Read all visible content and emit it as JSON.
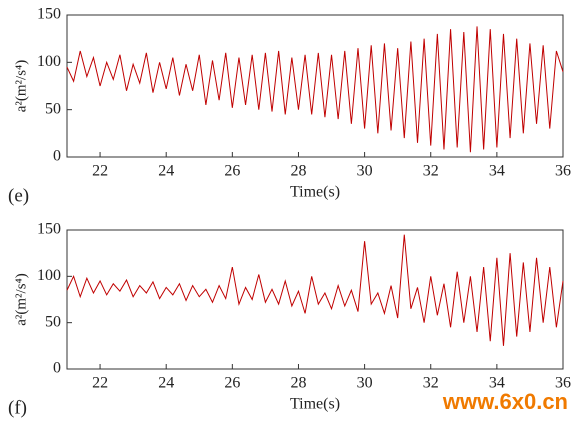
{
  "chart_data": [
    {
      "type": "line",
      "panel_label": "(e)",
      "x_label": "Time(s)",
      "y_label": "a²(m²/s⁴)",
      "xlim": [
        21,
        36
      ],
      "xticks": [
        22,
        24,
        26,
        28,
        30,
        32,
        34,
        36
      ],
      "ylim": [
        0,
        150
      ],
      "yticks": [
        0,
        50,
        100,
        150
      ],
      "color": "#c00000",
      "x": [
        21.0,
        21.2,
        21.4,
        21.6,
        21.8,
        22.0,
        22.2,
        22.4,
        22.6,
        22.8,
        23.0,
        23.2,
        23.4,
        23.6,
        23.8,
        24.0,
        24.2,
        24.4,
        24.6,
        24.8,
        25.0,
        25.2,
        25.4,
        25.6,
        25.8,
        26.0,
        26.2,
        26.4,
        26.6,
        26.8,
        27.0,
        27.2,
        27.4,
        27.6,
        27.8,
        28.0,
        28.2,
        28.4,
        28.6,
        28.8,
        29.0,
        29.2,
        29.4,
        29.6,
        29.8,
        30.0,
        30.2,
        30.4,
        30.6,
        30.8,
        31.0,
        31.2,
        31.4,
        31.6,
        31.8,
        32.0,
        32.2,
        32.4,
        32.6,
        32.8,
        33.0,
        33.2,
        33.4,
        33.6,
        33.8,
        34.0,
        34.2,
        34.4,
        34.6,
        34.8,
        35.0,
        35.2,
        35.4,
        35.6,
        35.8,
        36.0
      ],
      "values": [
        95,
        80,
        112,
        85,
        105,
        75,
        100,
        82,
        108,
        70,
        98,
        78,
        110,
        68,
        100,
        72,
        105,
        65,
        98,
        70,
        108,
        55,
        102,
        60,
        110,
        52,
        105,
        55,
        108,
        50,
        110,
        48,
        112,
        45,
        105,
        50,
        108,
        45,
        110,
        42,
        108,
        40,
        112,
        35,
        115,
        30,
        118,
        25,
        120,
        28,
        115,
        20,
        122,
        15,
        125,
        12,
        130,
        8,
        135,
        10,
        132,
        5,
        138,
        8,
        135,
        10,
        130,
        20,
        125,
        25,
        120,
        35,
        118,
        30,
        112,
        90
      ]
    },
    {
      "type": "line",
      "panel_label": "(f)",
      "x_label": "Time(s)",
      "y_label": "a²(m²/s⁴)",
      "xlim": [
        21,
        36
      ],
      "xticks": [
        22,
        24,
        26,
        28,
        30,
        32,
        34,
        36
      ],
      "ylim": [
        0,
        150
      ],
      "yticks": [
        0,
        50,
        100,
        150
      ],
      "color": "#c00000",
      "x": [
        21.0,
        21.2,
        21.4,
        21.6,
        21.8,
        22.0,
        22.2,
        22.4,
        22.6,
        22.8,
        23.0,
        23.2,
        23.4,
        23.6,
        23.8,
        24.0,
        24.2,
        24.4,
        24.6,
        24.8,
        25.0,
        25.2,
        25.4,
        25.6,
        25.8,
        26.0,
        26.2,
        26.4,
        26.6,
        26.8,
        27.0,
        27.2,
        27.4,
        27.6,
        27.8,
        28.0,
        28.2,
        28.4,
        28.6,
        28.8,
        29.0,
        29.2,
        29.4,
        29.6,
        29.8,
        30.0,
        30.2,
        30.4,
        30.6,
        30.8,
        31.0,
        31.2,
        31.4,
        31.6,
        31.8,
        32.0,
        32.2,
        32.4,
        32.6,
        32.8,
        33.0,
        33.2,
        33.4,
        33.6,
        33.8,
        34.0,
        34.2,
        34.4,
        34.6,
        34.8,
        35.0,
        35.2,
        35.4,
        35.6,
        35.8,
        36.0
      ],
      "values": [
        85,
        100,
        78,
        98,
        82,
        95,
        80,
        92,
        84,
        96,
        78,
        90,
        82,
        94,
        76,
        88,
        80,
        92,
        74,
        90,
        78,
        86,
        72,
        90,
        76,
        110,
        70,
        88,
        75,
        102,
        72,
        86,
        70,
        95,
        68,
        84,
        60,
        100,
        70,
        82,
        65,
        90,
        68,
        85,
        62,
        138,
        70,
        82,
        60,
        90,
        55,
        145,
        65,
        88,
        50,
        100,
        58,
        92,
        45,
        105,
        50,
        100,
        40,
        110,
        30,
        120,
        25,
        125,
        35,
        115,
        40,
        120,
        50,
        110,
        45,
        95
      ]
    }
  ],
  "watermark": "www.6x0.cn"
}
